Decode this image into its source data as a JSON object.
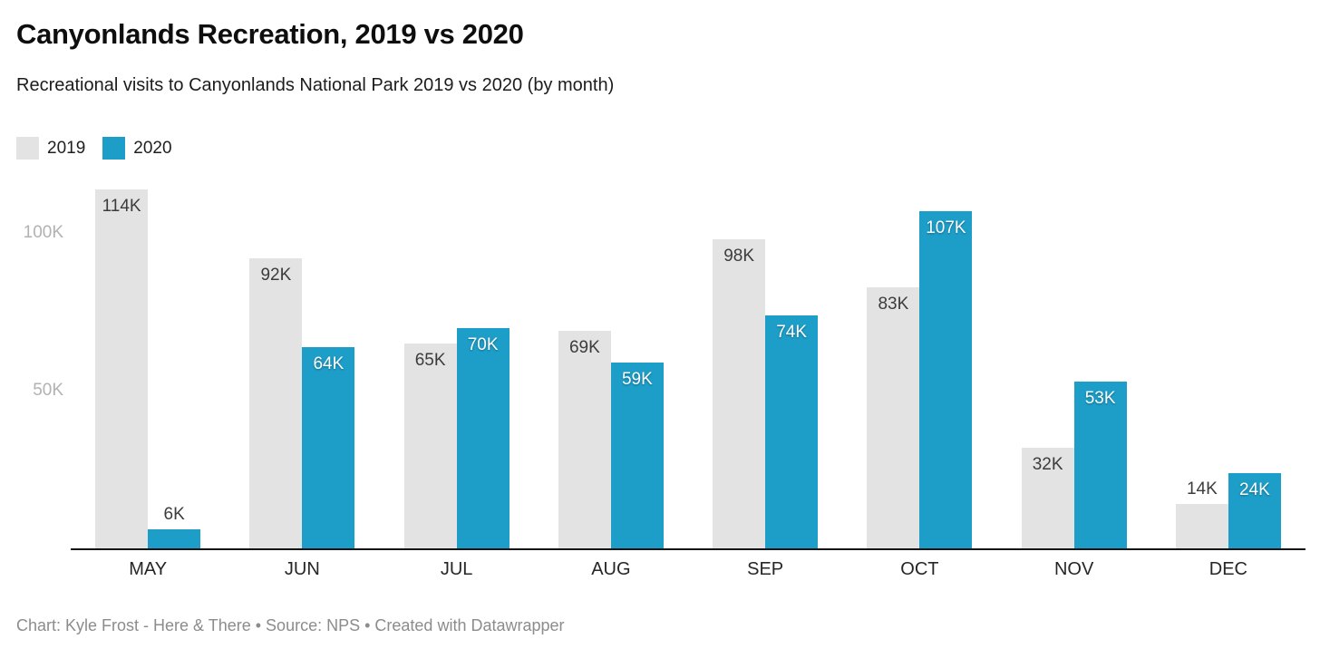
{
  "header": {
    "title": "Canyonlands Recreation, 2019 vs 2020",
    "subtitle": "Recreational visits to Canyonlands National Park 2019 vs 2020 (by month)"
  },
  "chart_data": {
    "type": "bar",
    "title": "Canyonlands Recreation, 2019 vs 2020",
    "subtitle": "Recreational visits to Canyonlands National Park 2019 vs 2020 (by month)",
    "categories": [
      "MAY",
      "JUN",
      "JUL",
      "AUG",
      "SEP",
      "OCT",
      "NOV",
      "DEC"
    ],
    "series": [
      {
        "name": "2019",
        "color": "#e3e3e3",
        "values": [
          114,
          92,
          65,
          69,
          98,
          83,
          32,
          14
        ],
        "labels": [
          "114K",
          "92K",
          "65K",
          "69K",
          "98K",
          "83K",
          "32K",
          "14K"
        ]
      },
      {
        "name": "2020",
        "color": "#1d9ec9",
        "values": [
          6,
          64,
          70,
          59,
          74,
          107,
          53,
          24
        ],
        "labels": [
          "6K",
          "64K",
          "70K",
          "59K",
          "74K",
          "107K",
          "53K",
          "24K"
        ]
      }
    ],
    "value_unit": "K",
    "ylim": [
      0,
      120
    ],
    "yticks": [
      {
        "label": "50K",
        "value": 50
      },
      {
        "label": "100K",
        "value": 100
      }
    ],
    "grid": false,
    "legend_position": "top-left",
    "xlabel": "",
    "ylabel": ""
  },
  "footer": {
    "credit": "Chart: Kyle Frost - Here & There • Source: NPS • Created with Datawrapper"
  }
}
